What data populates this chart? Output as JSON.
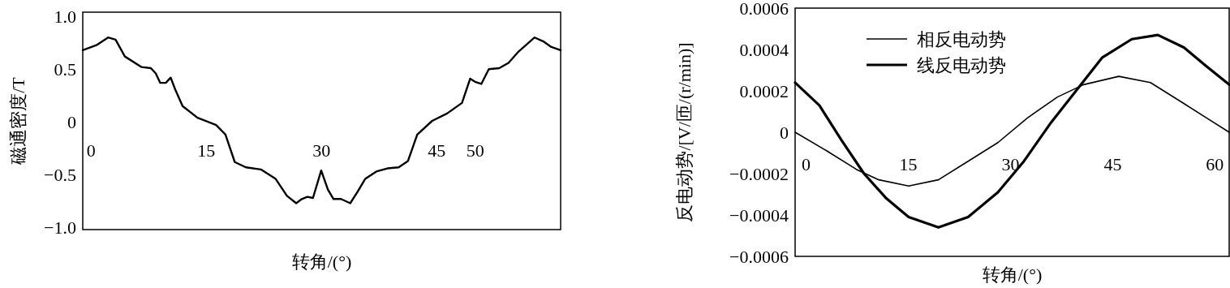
{
  "chart_data": [
    {
      "type": "line",
      "xlabel": "转角/(°)",
      "ylabel": "磁通密度/T",
      "color": "#000000",
      "x": [
        -1.07,
        0.78,
        2.23,
        3.2,
        4.41,
        6.59,
        7.8,
        8.43,
        9.02,
        9.74,
        10.37,
        10.95,
        11.92,
        13.86,
        16.29,
        17.5,
        18.71,
        20.16,
        22.1,
        24.04,
        25.5,
        26.71,
        27.44,
        28.16,
        28.89,
        29.96,
        30.83,
        31.56,
        32.53,
        33.74,
        34.71,
        35.68,
        37.13,
        38.58,
        40.04,
        41.25,
        42.46,
        44.4,
        46.34,
        48.28,
        49.35,
        49.98,
        50.8,
        51.77,
        53.13,
        54.34,
        55.55,
        57.73,
        58.94,
        59.91,
        61.12
      ],
      "values": [
        0.68,
        0.73,
        0.8,
        0.78,
        0.62,
        0.52,
        0.51,
        0.46,
        0.37,
        0.37,
        0.42,
        0.31,
        0.15,
        0.04,
        -0.03,
        -0.12,
        -0.38,
        -0.43,
        -0.45,
        -0.54,
        -0.7,
        -0.77,
        -0.73,
        -0.71,
        -0.72,
        -0.46,
        -0.64,
        -0.73,
        -0.73,
        -0.77,
        -0.66,
        -0.54,
        -0.47,
        -0.44,
        -0.43,
        -0.37,
        -0.12,
        0.01,
        0.08,
        0.18,
        0.41,
        0.38,
        0.36,
        0.5,
        0.51,
        0.56,
        0.66,
        0.8,
        0.76,
        0.71,
        0.68
      ],
      "xlim": [
        -1.07,
        61.12
      ],
      "xticks": [
        0,
        15,
        30,
        45,
        50
      ],
      "ylim": [
        -1.02,
        1.04
      ],
      "yticks": [
        {
          "value": 1,
          "label": "1.0"
        },
        0.5,
        0,
        {
          "value": -0.5,
          "label": "−0.5"
        },
        {
          "value": -1,
          "label": "−1.0"
        }
      ],
      "grid": false,
      "legend": false,
      "line_style": "solid",
      "marker": "none"
    },
    {
      "type": "line",
      "xlabel": "转角/(°)",
      "ylabel": "反电动势/[V/匝/(r/min)]",
      "series": [
        {
          "name": "相反电动势",
          "color": "#000000",
          "x": [
            -1.6,
            3.05,
            7.42,
            10.69,
            15.06,
            19.43,
            23.79,
            28.16,
            32.53,
            36.89,
            40.72,
            45.9,
            50.54,
            54.91,
            58.73,
            62.1
          ],
          "values": [
            0,
            -9e-05,
            -0.00018,
            -0.00023,
            -0.00026,
            -0.00023,
            -0.00014,
            -5e-05,
            7e-05,
            0.00017,
            0.00023,
            0.00027,
            0.00024,
            0.00015,
            7e-05,
            0
          ]
        },
        {
          "name": "线反电动势",
          "color": "#000000",
          "x": [
            -1.6,
            1.96,
            5.23,
            8.51,
            11.79,
            15.06,
            19.43,
            23.79,
            28.16,
            31.98,
            35.8,
            39.62,
            43.44,
            47.81,
            51.63,
            55.45,
            58.73,
            62.1
          ],
          "values": [
            0.00024,
            0.00013,
            -4e-05,
            -0.0002,
            -0.00032,
            -0.00041,
            -0.00046,
            -0.00041,
            -0.00029,
            -0.00014,
            4e-05,
            0.0002,
            0.00036,
            0.00045,
            0.00047,
            0.00041,
            0.00032,
            0.00023
          ]
        }
      ],
      "xlim": [
        -1.6,
        62.1
      ],
      "xticks": [
        0,
        15,
        30,
        45,
        60
      ],
      "ylim": [
        -0.0006,
        0.0006
      ],
      "yticks": [
        0.0006,
        0.0004,
        0.0002,
        0,
        {
          "value": -0.0002,
          "label": "−0.0002"
        },
        {
          "value": -0.0004,
          "label": "−0.0004"
        },
        {
          "value": -0.0006,
          "label": "−0.0006"
        }
      ],
      "grid": false,
      "legend": "top left",
      "line_style": "solid",
      "marker": "none"
    }
  ]
}
